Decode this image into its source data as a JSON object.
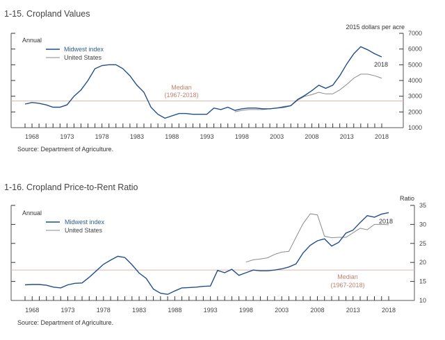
{
  "chart_data": [
    {
      "type": "line",
      "title": "1-15. Cropland Values",
      "frequency_label": "Annual",
      "ylabel": "2015 dollars per acre",
      "xlabel": "",
      "source": "Source: Department of Agriculture.",
      "ylim": [
        1000,
        7000
      ],
      "yticks": [
        1000,
        2000,
        3000,
        4000,
        5000,
        6000,
        7000
      ],
      "xlim": [
        1967,
        2018
      ],
      "xtick_labels": [
        "1968",
        "1973",
        "1978",
        "1983",
        "1988",
        "1993",
        "1998",
        "2003",
        "2008",
        "2013",
        "2018"
      ],
      "legend": [
        "Midwest index",
        "United States"
      ],
      "legend_position": "top-left",
      "annotation_end": "2018",
      "median": {
        "value": 2700,
        "label_line1": "Median",
        "label_line2": "(1967-2018)"
      },
      "series": [
        {
          "name": "Midwest index",
          "color": "#1f4e8a",
          "x": [
            1967,
            1968,
            1969,
            1970,
            1971,
            1972,
            1973,
            1974,
            1975,
            1976,
            1977,
            1978,
            1979,
            1980,
            1981,
            1982,
            1983,
            1984,
            1985,
            1986,
            1987,
            1988,
            1989,
            1990,
            1991,
            1992,
            1993,
            1994,
            1995,
            1996,
            1997,
            1998,
            1999,
            2000,
            2001,
            2002,
            2003,
            2004,
            2005,
            2006,
            2007,
            2008,
            2009,
            2010,
            2011,
            2012,
            2013,
            2014,
            2015,
            2016,
            2017,
            2018
          ],
          "values": [
            2500,
            2600,
            2550,
            2450,
            2300,
            2300,
            2450,
            3000,
            3400,
            4000,
            4750,
            4950,
            5000,
            5000,
            4750,
            4300,
            3700,
            3250,
            2300,
            1850,
            1600,
            1750,
            1900,
            1900,
            1850,
            1850,
            1850,
            2250,
            2150,
            2300,
            2100,
            2200,
            2250,
            2250,
            2200,
            2200,
            2250,
            2300,
            2400,
            2800,
            3050,
            3350,
            3700,
            3500,
            3700,
            4300,
            5050,
            5700,
            6150,
            5950,
            5700,
            5500
          ]
        },
        {
          "name": "United States",
          "color": "#8a8a8a",
          "x": [
            1997,
            1998,
            1999,
            2000,
            2001,
            2002,
            2003,
            2004,
            2005,
            2006,
            2007,
            2008,
            2009,
            2010,
            2011,
            2012,
            2013,
            2014,
            2015,
            2016,
            2017,
            2018
          ],
          "values": [
            2000,
            2100,
            2150,
            2150,
            2150,
            2200,
            2250,
            2350,
            2400,
            2750,
            3000,
            3100,
            3250,
            3150,
            3150,
            3400,
            3750,
            4150,
            4400,
            4400,
            4300,
            4150
          ]
        }
      ]
    },
    {
      "type": "line",
      "title": "1-16. Cropland Price-to-Rent Ratio",
      "frequency_label": "Annual",
      "ylabel": "Ratio",
      "xlabel": "",
      "source": "Source: Department of Agriculture.",
      "ylim": [
        10,
        35
      ],
      "yticks": [
        10,
        15,
        20,
        25,
        30,
        35
      ],
      "xlim": [
        1967,
        2018
      ],
      "xtick_labels": [
        "1968",
        "1973",
        "1978",
        "1983",
        "1988",
        "1993",
        "1998",
        "2003",
        "2008",
        "2013",
        "2018"
      ],
      "legend": [
        "Midwest index",
        "United States"
      ],
      "legend_position": "top-left",
      "annotation_end": "2018",
      "median": {
        "value": 18,
        "label_line1": "Median",
        "label_line2": "(1967-2018)"
      },
      "series": [
        {
          "name": "Midwest index",
          "color": "#1f4e8a",
          "x": [
            1967,
            1968,
            1969,
            1970,
            1971,
            1972,
            1973,
            1974,
            1975,
            1976,
            1977,
            1978,
            1979,
            1980,
            1981,
            1982,
            1983,
            1984,
            1985,
            1986,
            1987,
            1988,
            1989,
            1990,
            1991,
            1992,
            1993,
            1994,
            1995,
            1996,
            1997,
            1998,
            1999,
            2000,
            2001,
            2002,
            2003,
            2004,
            2005,
            2006,
            2007,
            2008,
            2009,
            2010,
            2011,
            2012,
            2013,
            2014,
            2015,
            2016,
            2017,
            2018
          ],
          "values": [
            14.1,
            14.2,
            14.2,
            14.0,
            13.5,
            13.3,
            14.1,
            14.5,
            14.6,
            16.1,
            17.8,
            19.5,
            20.6,
            21.6,
            21.3,
            19.4,
            17.2,
            15.8,
            13.0,
            11.9,
            11.6,
            12.5,
            13.3,
            13.4,
            13.5,
            13.7,
            13.8,
            17.9,
            17.3,
            18.2,
            16.6,
            17.3,
            18.0,
            17.8,
            17.8,
            18.0,
            18.3,
            18.8,
            19.6,
            22.5,
            24.5,
            25.7,
            26.2,
            24.3,
            25.3,
            27.7,
            28.5,
            30.5,
            32.3,
            31.9,
            32.7,
            33.1
          ]
        },
        {
          "name": "United States",
          "color": "#8a8a8a",
          "x": [
            1998,
            1999,
            2000,
            2001,
            2002,
            2003,
            2004,
            2005,
            2006,
            2007,
            2008,
            2009,
            2010,
            2011,
            2012,
            2013,
            2014,
            2015,
            2016,
            2017,
            2018
          ],
          "values": [
            20.1,
            20.7,
            20.9,
            21.2,
            22.1,
            22.7,
            22.9,
            26.6,
            30.2,
            32.8,
            32.5,
            26.9,
            26.5,
            26.6,
            26.6,
            27.8,
            29.0,
            28.6,
            30.0,
            30.0,
            29.9
          ]
        }
      ]
    }
  ]
}
